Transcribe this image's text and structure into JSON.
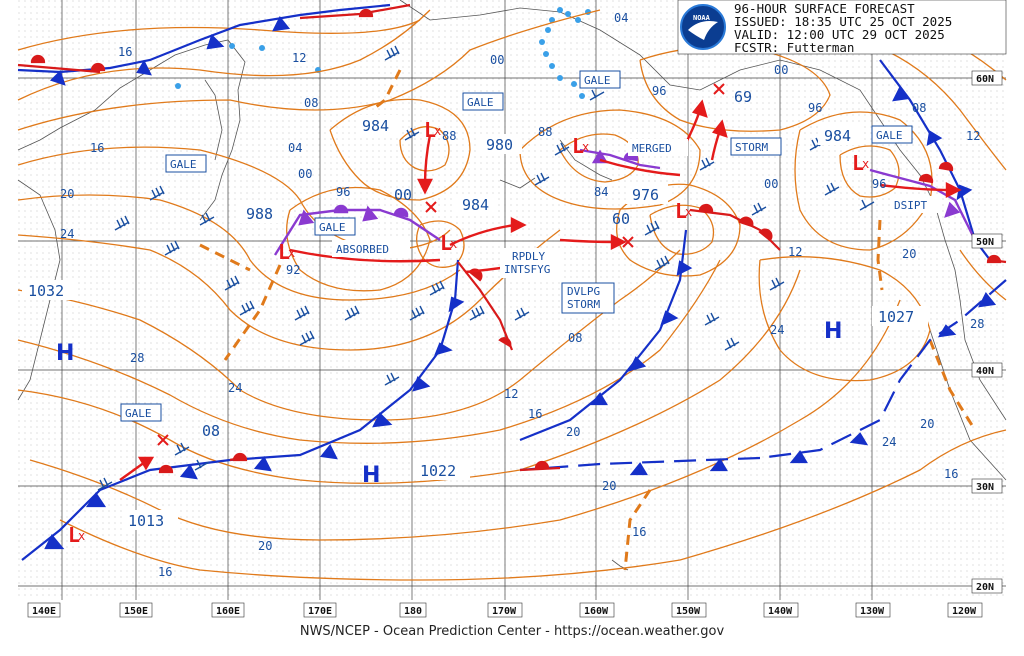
{
  "header": {
    "line1": "96-HOUR SURFACE FORECAST",
    "line2": "ISSUED: 18:35 UTC 25 OCT 2025",
    "line3": "VALID:  12:00 UTC 29 OCT 2025",
    "line4": "FCSTR:  Futterman",
    "logo_text": "NOAA"
  },
  "footer": "NWS/NCEP - Ocean Prediction Center - https://ocean.weather.gov",
  "axes": {
    "longitudes": [
      "140E",
      "150E",
      "160E",
      "170E",
      "180",
      "170W",
      "160W",
      "150W",
      "140W",
      "130W",
      "120W"
    ],
    "latitudes": [
      "60N",
      "50N",
      "40N",
      "30N",
      "20N"
    ]
  },
  "systems": {
    "highs": [
      {
        "letter": "H",
        "pressure": "1032"
      },
      {
        "letter": "H",
        "pressure": "1022"
      },
      {
        "letter": "H",
        "pressure": "1027"
      }
    ],
    "lows": [
      {
        "letter": "L",
        "pressure": "988"
      },
      {
        "letter": "L",
        "pressure": "984"
      },
      {
        "letter": "L",
        "pressure": "980"
      },
      {
        "letter": "L",
        "pressure": "976"
      },
      {
        "letter": "L",
        "pressure": "984"
      },
      {
        "letter": "L",
        "pressure": "1013"
      }
    ]
  },
  "box_labels": {
    "gale_1": "GALE",
    "gale_2": "GALE",
    "gale_3": "GALE",
    "gale_4": "GALE",
    "gale_5": "GALE",
    "gale_6": "GALE",
    "merged": "MERGED",
    "storm": "STORM",
    "absorbed": "ABSORBED",
    "rpdly": "RPDLY",
    "intsfyg": "INTSFYG",
    "dvlpg": "DVLPG",
    "dvlpg_storm": "STORM",
    "dsipt": "DSIPT"
  },
  "isobar_labels": {
    "a16": "16",
    "a12": "12",
    "a08": "08",
    "a04": "04",
    "a00": "00",
    "b16": "16",
    "b20": "20",
    "b24": "24",
    "b28": "28",
    "b24b": "24",
    "c00": "00",
    "c04": "04",
    "c96": "96",
    "c92": "92",
    "c88": "88",
    "c88b": "88",
    "c84": "84",
    "c96b": "96",
    "c00b": "00",
    "c60": "60",
    "c69": "69",
    "c96c": "96",
    "c96d": "96",
    "c08": "08",
    "c12": "12",
    "c12b": "12",
    "c08b": "08",
    "c16": "16",
    "c20": "20",
    "c24": "24",
    "c12c": "12",
    "c20b": "20",
    "c28": "28",
    "c24b": "24",
    "c20c": "20",
    "c16b": "16",
    "c16c": "16",
    "c20d": "20",
    "c20e": "20",
    "c00c": "00",
    "c08c": "08"
  }
}
